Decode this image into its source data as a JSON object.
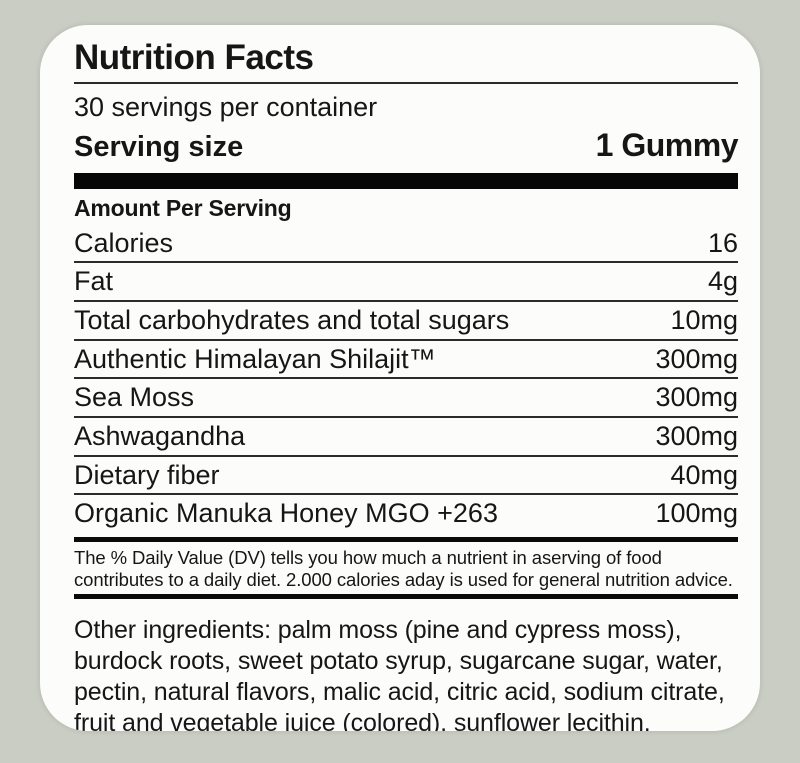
{
  "colors": {
    "page_background": "#cacdc4",
    "card_background": "#fcfcfb",
    "text": "#161616"
  },
  "label": {
    "title": "Nutrition Facts",
    "servings_per_container": "30 servings per container",
    "serving_size_label": "Serving size",
    "serving_size_value": "1 Gummy",
    "amount_per_serving": "Amount Per Serving",
    "rows": [
      {
        "name": "Calories",
        "amount": "16"
      },
      {
        "name": "Fat",
        "amount": "4g"
      },
      {
        "name": "Total carbohydrates and total sugars",
        "amount": "10mg"
      },
      {
        "name": "Authentic Himalayan Shilajit™",
        "amount": "300mg"
      },
      {
        "name": "Sea Moss",
        "amount": "300mg"
      },
      {
        "name": "Ashwagandha",
        "amount": "300mg"
      },
      {
        "name": "Dietary fiber",
        "amount": "40mg"
      },
      {
        "name": "Organic Manuka Honey MGO +263",
        "amount": "100mg"
      }
    ],
    "daily_value_note": {
      "line1": "The % Daily Value (DV) tells you how much a nutrient in aserving of food",
      "line2": "contributes to a daily diet. 2.000 calories aday is used for general nutrition advice."
    },
    "other_ingredients": {
      "line1": "Other ingredients: palm moss (pine and cypress moss),",
      "line2": "burdock roots, sweet potato syrup, sugarcane sugar, water,",
      "line3": "pectin, natural flavors, malic acid, citric acid, sodium citrate,",
      "line4": "fruit and vegetable juice (colored), sunflower lecithin."
    }
  }
}
